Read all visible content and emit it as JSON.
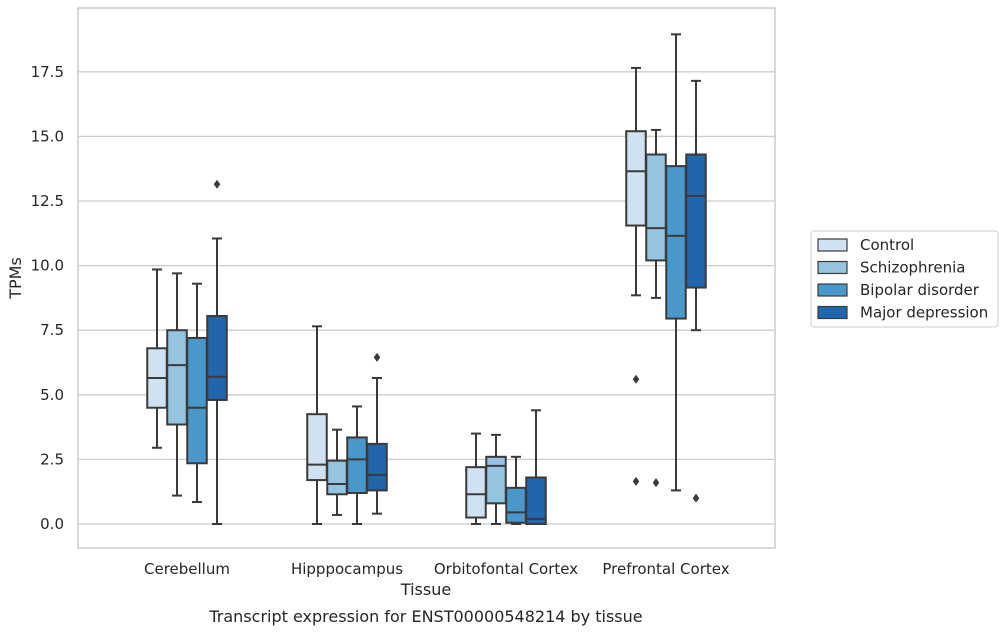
{
  "chart_data": {
    "type": "boxplot",
    "title": "",
    "caption": "Transcript expression for ENST00000548214 by tissue",
    "xlabel": "Tissue",
    "ylabel": "TPMs",
    "ylim": [
      -0.9,
      20
    ],
    "yticks": [
      "0.0",
      "2.5",
      "5.0",
      "7.5",
      "10.0",
      "12.5",
      "15.0",
      "17.5"
    ],
    "grid": "horizontal",
    "legend_position": "right",
    "categories": [
      "Cerebellum",
      "Hipppocampus",
      "Orbitofontal Cortex",
      "Prefrontal Cortex"
    ],
    "series": [
      {
        "name": "Control",
        "color": "#d0e1f2",
        "boxes": [
          {
            "whislo": 2.95,
            "q1": 4.5,
            "med": 5.65,
            "q3": 6.8,
            "whishi": 9.85,
            "fliers": []
          },
          {
            "whislo": 0.0,
            "q1": 1.7,
            "med": 2.3,
            "q3": 4.25,
            "whishi": 7.65,
            "fliers": []
          },
          {
            "whislo": 0.0,
            "q1": 0.25,
            "med": 1.15,
            "q3": 2.2,
            "whishi": 3.5,
            "fliers": []
          },
          {
            "whislo": 8.85,
            "q1": 11.55,
            "med": 13.65,
            "q3": 15.2,
            "whishi": 17.65,
            "fliers": [
              5.6,
              1.65
            ]
          }
        ]
      },
      {
        "name": "Schizophrenia",
        "color": "#94c4df",
        "boxes": [
          {
            "whislo": 1.1,
            "q1": 3.85,
            "med": 6.15,
            "q3": 7.5,
            "whishi": 9.7,
            "fliers": []
          },
          {
            "whislo": 0.35,
            "q1": 1.15,
            "med": 1.55,
            "q3": 2.45,
            "whishi": 3.65,
            "fliers": []
          },
          {
            "whislo": 0.0,
            "q1": 0.8,
            "med": 2.25,
            "q3": 2.6,
            "whishi": 3.45,
            "fliers": []
          },
          {
            "whislo": 8.75,
            "q1": 10.2,
            "med": 11.45,
            "q3": 14.3,
            "whishi": 15.25,
            "fliers": [
              1.6
            ]
          }
        ]
      },
      {
        "name": "Bipolar disorder",
        "color": "#4a98c9",
        "boxes": [
          {
            "whislo": 0.85,
            "q1": 2.35,
            "med": 4.5,
            "q3": 7.2,
            "whishi": 9.3,
            "fliers": []
          },
          {
            "whislo": 0.0,
            "q1": 1.2,
            "med": 2.5,
            "q3": 3.35,
            "whishi": 4.55,
            "fliers": []
          },
          {
            "whislo": 0.0,
            "q1": 0.05,
            "med": 0.45,
            "q3": 1.4,
            "whishi": 2.6,
            "fliers": []
          },
          {
            "whislo": 1.3,
            "q1": 7.95,
            "med": 11.15,
            "q3": 13.85,
            "whishi": 18.95,
            "fliers": []
          }
        ]
      },
      {
        "name": "Major depression",
        "color": "#2166ac",
        "boxes": [
          {
            "whislo": 0.0,
            "q1": 4.8,
            "med": 5.7,
            "q3": 8.05,
            "whishi": 11.05,
            "fliers": [
              13.15
            ]
          },
          {
            "whislo": 0.4,
            "q1": 1.3,
            "med": 1.9,
            "q3": 3.1,
            "whishi": 5.65,
            "fliers": [
              6.45
            ]
          },
          {
            "whislo": 0.0,
            "q1": 0.0,
            "med": 0.2,
            "q3": 1.8,
            "whishi": 4.4,
            "fliers": []
          },
          {
            "whislo": 7.5,
            "q1": 9.15,
            "med": 12.7,
            "q3": 14.3,
            "whishi": 17.15,
            "fliers": [
              1.0
            ]
          }
        ]
      }
    ]
  }
}
